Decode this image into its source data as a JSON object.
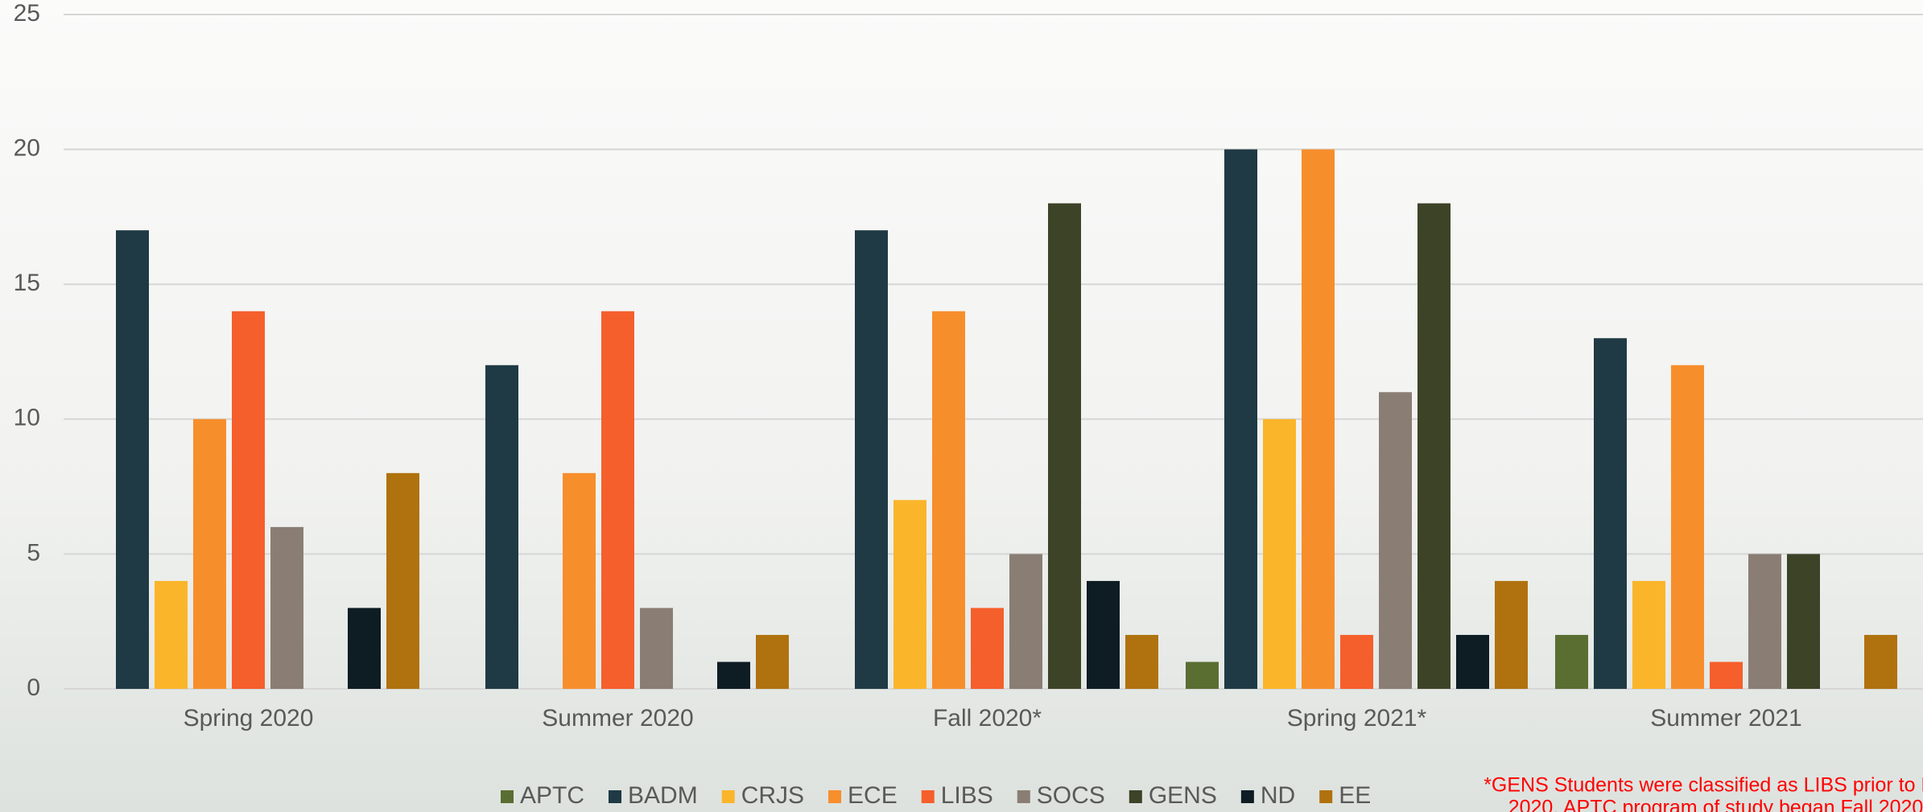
{
  "chart_data": {
    "type": "bar",
    "categories": [
      "Spring 2020",
      "Summer 2020",
      "Fall 2020*",
      "Spring 2021*",
      "Summer 2021"
    ],
    "series": [
      {
        "name": "APTC",
        "color": "#5a6e32",
        "values": [
          0,
          0,
          0,
          1,
          2
        ]
      },
      {
        "name": "BADM",
        "color": "#1f3a44",
        "values": [
          17,
          12,
          17,
          20,
          13
        ]
      },
      {
        "name": "CRJS",
        "color": "#fbb52a",
        "values": [
          4,
          0,
          7,
          10,
          4
        ]
      },
      {
        "name": "ECE",
        "color": "#f78e2c",
        "values": [
          10,
          8,
          14,
          20,
          12
        ]
      },
      {
        "name": "LIBS",
        "color": "#f55f2c",
        "values": [
          14,
          14,
          3,
          2,
          1
        ]
      },
      {
        "name": "SOCS",
        "color": "#8a7e74",
        "values": [
          6,
          3,
          5,
          11,
          5
        ]
      },
      {
        "name": "GENS",
        "color": "#3d4327",
        "values": [
          0,
          0,
          18,
          18,
          5
        ]
      },
      {
        "name": "ND",
        "color": "#0e1c24",
        "values": [
          3,
          1,
          4,
          2,
          0
        ]
      },
      {
        "name": "EE",
        "color": "#b0720e",
        "values": [
          8,
          2,
          2,
          4,
          2
        ]
      }
    ],
    "ylim": [
      0,
      25
    ],
    "yticks": [
      0,
      5,
      10,
      15,
      20,
      25
    ],
    "grid": true,
    "legend": "bottom",
    "annotation": [
      "*GENS Students were classified as LIBS prior to Fall",
      "2020. APTC program of study began Fall 2020."
    ]
  }
}
